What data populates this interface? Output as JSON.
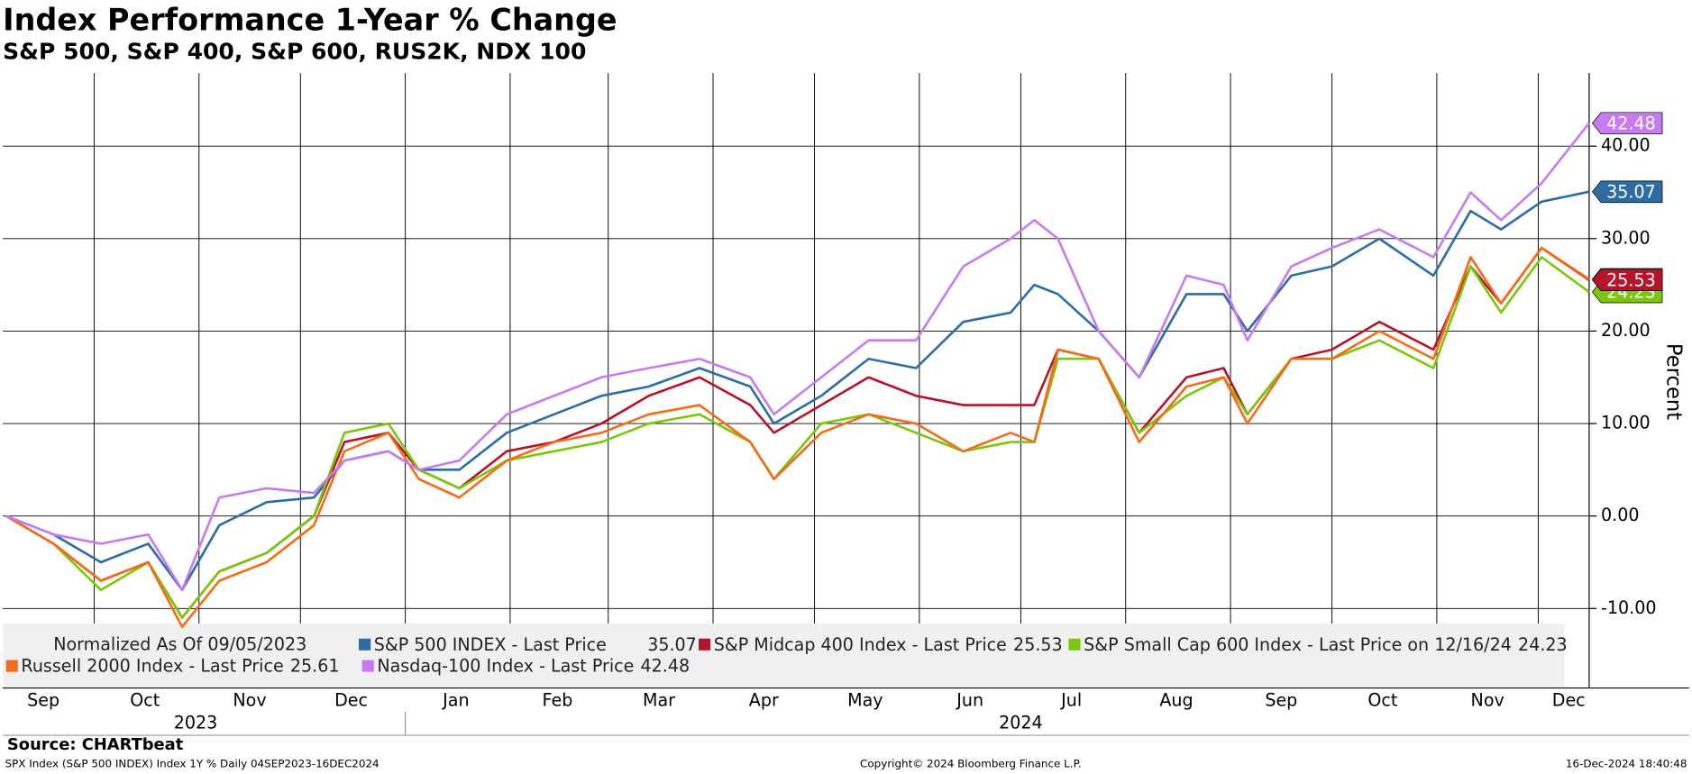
{
  "chart_data": {
    "type": "line",
    "title": "Index Performance 1-Year % Change",
    "subtitle": "S&P 500, S&P 400, S&P 600, RUS2K, NDX 100",
    "y_label": "Percent",
    "legend_note": "Normalized As Of 09/05/2023",
    "source": "Source: CHARTbeat",
    "footer_left": "SPX Index (S&P 500 INDEX) Index 1Y %  Daily 04SEP2023-16DEC2024",
    "footer_center": "Copyright© 2024 Bloomberg Finance L.P.",
    "footer_right": "16-Dec-2024 18:40:48",
    "xlim": [
      "2023-09-04",
      "2024-12-17"
    ],
    "ylim": [
      -18.6,
      47.9
    ],
    "yticks": [
      {
        "value": -10,
        "label": "-10.00"
      },
      {
        "value": 0,
        "label": "0.00"
      },
      {
        "value": 10,
        "label": "10.00"
      },
      {
        "value": 20,
        "label": "20.00"
      },
      {
        "value": 30,
        "label": "30.00"
      },
      {
        "value": 40,
        "label": "40.00"
      }
    ],
    "xgrid": [
      "2023-10-01",
      "2023-11-01",
      "2023-12-01",
      "2024-01-01",
      "2024-02-01",
      "2024-03-01",
      "2024-04-01",
      "2024-05-01",
      "2024-06-01",
      "2024-07-01",
      "2024-08-01",
      "2024-09-01",
      "2024-10-01",
      "2024-11-01",
      "2024-12-01"
    ],
    "xticks": [
      {
        "value": "2023-09-16",
        "label": "Sep"
      },
      {
        "value": "2023-10-16",
        "label": "Oct"
      },
      {
        "value": "2023-11-16",
        "label": "Nov"
      },
      {
        "value": "2023-12-16",
        "label": "Dec"
      },
      {
        "value": "2024-01-16",
        "label": "Jan"
      },
      {
        "value": "2024-02-15",
        "label": "Feb"
      },
      {
        "value": "2024-03-16",
        "label": "Mar"
      },
      {
        "value": "2024-04-16",
        "label": "Apr"
      },
      {
        "value": "2024-05-16",
        "label": "May"
      },
      {
        "value": "2024-06-16",
        "label": "Jun"
      },
      {
        "value": "2024-07-16",
        "label": "Jul"
      },
      {
        "value": "2024-08-16",
        "label": "Aug"
      },
      {
        "value": "2024-09-16",
        "label": "Sep"
      },
      {
        "value": "2024-10-16",
        "label": "Oct"
      },
      {
        "value": "2024-11-16",
        "label": "Nov"
      },
      {
        "value": "2024-12-10",
        "label": "Dec"
      }
    ],
    "year_labels": [
      {
        "value": "2023-10-31",
        "label": "2023"
      },
      {
        "value": "2024-07-01",
        "label": "2024"
      }
    ],
    "year_divider": "2024-01-01",
    "grid": true,
    "x": [
      "2023-09-05",
      "2023-09-19",
      "2023-10-03",
      "2023-10-17",
      "2023-10-27",
      "2023-11-07",
      "2023-11-21",
      "2023-12-05",
      "2023-12-14",
      "2023-12-27",
      "2024-01-05",
      "2024-01-17",
      "2024-01-31",
      "2024-02-14",
      "2024-02-28",
      "2024-03-13",
      "2024-03-28",
      "2024-04-12",
      "2024-04-19",
      "2024-05-03",
      "2024-05-17",
      "2024-05-31",
      "2024-06-14",
      "2024-06-28",
      "2024-07-05",
      "2024-07-12",
      "2024-07-24",
      "2024-08-05",
      "2024-08-19",
      "2024-08-30",
      "2024-09-06",
      "2024-09-19",
      "2024-10-01",
      "2024-10-15",
      "2024-10-31",
      "2024-11-11",
      "2024-11-20",
      "2024-12-02",
      "2024-12-16"
    ],
    "series": [
      {
        "name": "S&P 500 INDEX - Last Price",
        "color": "#2e6da4",
        "values": [
          0,
          -2,
          -5,
          -3,
          -8,
          -1,
          1.5,
          2,
          6,
          7,
          5,
          5,
          9,
          11,
          13,
          14,
          16,
          14,
          10,
          13,
          17,
          16,
          21,
          22,
          25,
          24,
          20,
          15,
          24,
          24,
          20,
          26,
          27,
          30,
          26,
          33,
          31,
          34,
          35.07
        ]
      },
      {
        "name": "S&P Midcap 400 Index - Last Price",
        "color": "#b5152b",
        "values": [
          0,
          -3,
          -7,
          -5,
          -11,
          -6,
          -4,
          0,
          8,
          9,
          5,
          3,
          7,
          8,
          10,
          13,
          15,
          12,
          9,
          12,
          15,
          13,
          12,
          12,
          12,
          18,
          17,
          9,
          15,
          16,
          11,
          17,
          18,
          21,
          18,
          27,
          23,
          29,
          25.53
        ]
      },
      {
        "name": "S&P Small Cap 600 Index - Last Price on 12/16/24",
        "color": "#7ac70c",
        "values": [
          0,
          -3,
          -8,
          -5,
          -11,
          -6,
          -4,
          0,
          9,
          10,
          5,
          3,
          6,
          7,
          8,
          10,
          11,
          8,
          4,
          10,
          11,
          9,
          7,
          8,
          8,
          17,
          17,
          9,
          13,
          15,
          11,
          17,
          17,
          19,
          16,
          27,
          22,
          28,
          24.23
        ]
      },
      {
        "name": "Russell 2000 Index - Last Price",
        "color": "#f26d1a",
        "values": [
          0,
          -3,
          -7,
          -5,
          -12,
          -7,
          -5,
          -1,
          7,
          9,
          4,
          2,
          6,
          8,
          9,
          11,
          12,
          8,
          4,
          9,
          11,
          10,
          7,
          9,
          8,
          18,
          17,
          8,
          14,
          15,
          10,
          17,
          17,
          20,
          17,
          28,
          23,
          29,
          25.61
        ]
      },
      {
        "name": "Nasdaq-100 Index - Last Price",
        "color": "#c77bf0",
        "values": [
          0,
          -2,
          -3,
          -2,
          -8,
          2,
          3,
          2.5,
          6,
          7,
          5,
          6,
          11,
          13,
          15,
          16,
          17,
          15,
          11,
          15,
          19,
          19,
          27,
          30,
          32,
          30,
          20,
          15,
          26,
          25,
          19,
          27,
          29,
          31,
          28,
          35,
          32,
          36,
          42.48
        ]
      }
    ]
  }
}
